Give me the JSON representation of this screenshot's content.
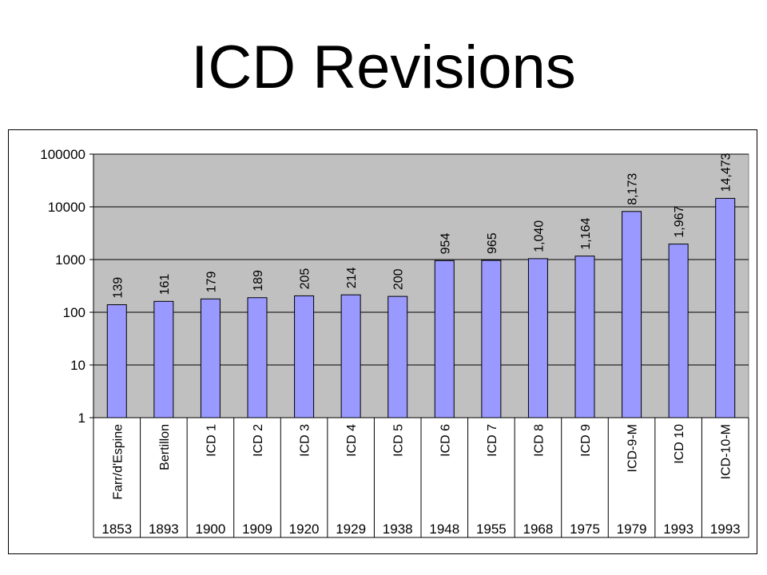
{
  "title": "ICD Revisions",
  "chart_data": {
    "type": "bar",
    "title": "",
    "xlabel": "",
    "ylabel": "",
    "y_scale": "log",
    "ylim": [
      1,
      100000
    ],
    "y_ticks": [
      "1",
      "10",
      "100",
      "1000",
      "10000",
      "100000"
    ],
    "grid": true,
    "categories": [
      "Farr/d'Espine",
      "Bertillon",
      "ICD 1",
      "ICD 2",
      "ICD 3",
      "ICD 4",
      "ICD 5",
      "ICD 6",
      "ICD 7",
      "ICD 8",
      "ICD 9",
      "ICD-9-M",
      "ICD 10",
      "ICD-10-M"
    ],
    "years": [
      "1853",
      "1893",
      "1900",
      "1909",
      "1920",
      "1929",
      "1938",
      "1948",
      "1955",
      "1968",
      "1975",
      "1979",
      "1993",
      "1993"
    ],
    "values": [
      139,
      161,
      179,
      189,
      205,
      214,
      200,
      954,
      965,
      1040,
      1164,
      8173,
      1967,
      14473
    ],
    "value_labels": [
      "139",
      "161",
      "179",
      "189",
      "205",
      "214",
      "200",
      "954",
      "965",
      "1,040",
      "1,164",
      "8,173",
      "1,967",
      "14,473"
    ],
    "colors": {
      "bar": "#9999ff",
      "plot_bg": "#c0c0c0"
    }
  }
}
